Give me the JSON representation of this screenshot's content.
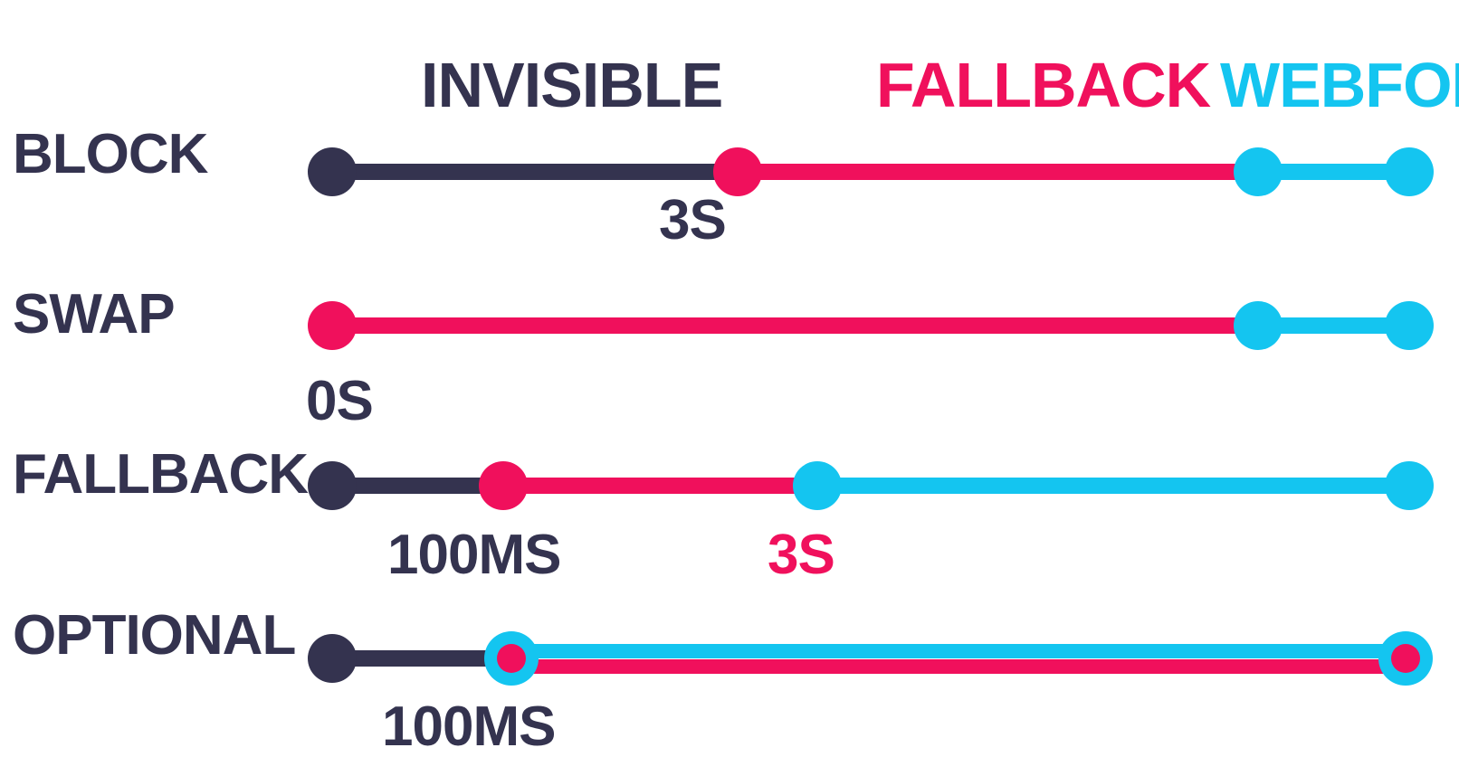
{
  "legend": [
    {
      "label": "INVISIBLE",
      "color": "#34334f"
    },
    {
      "label": "FALLBACK",
      "color": "#f0105c"
    },
    {
      "label": "WEBFONT",
      "color": "#14c5f0"
    }
  ],
  "rows": [
    {
      "name": "BLOCK",
      "annotations": [
        {
          "text": "3S",
          "color": "#34334f"
        }
      ]
    },
    {
      "name": "SWAP",
      "annotations": [
        {
          "text": "0S",
          "color": "#34334f"
        }
      ]
    },
    {
      "name": "FALLBACK",
      "annotations": [
        {
          "text": "100MS",
          "color": "#34334f"
        },
        {
          "text": "3S",
          "color": "#f0105c"
        }
      ]
    },
    {
      "name": "OPTIONAL",
      "annotations": [
        {
          "text": "100MS",
          "color": "#34334f"
        }
      ]
    }
  ],
  "colors": {
    "invisible": "#34334f",
    "fallback": "#f0105c",
    "webfont": "#14c5f0",
    "background": "#ffffff"
  }
}
